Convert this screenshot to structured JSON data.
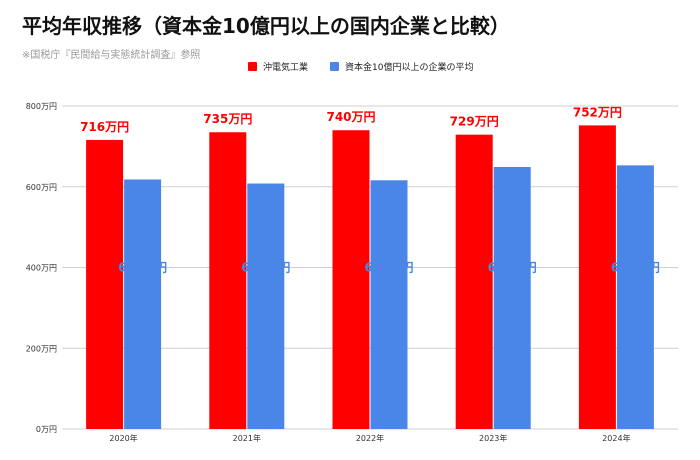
{
  "header": {
    "title": "平均年収推移（資本金10億円以上の国内企業と比較）",
    "source": "※国税庁『民間給与実態統計調査』参照"
  },
  "colors": {
    "series1": "#ff0000",
    "series2": "#4a86e8",
    "grid": "#d0d0d0",
    "label1": "#ff0000",
    "label2": "#4a86e8"
  },
  "chart_data": {
    "type": "bar",
    "categories": [
      "2020年",
      "2021年",
      "2022年",
      "2023年",
      "2024年"
    ],
    "series": [
      {
        "name": "沖電気工業",
        "values": [
          716,
          735,
          740,
          729,
          752
        ],
        "labels": [
          "716万円",
          "735万円",
          "740万円",
          "729万円",
          "752万円"
        ]
      },
      {
        "name": "資本金10億円以上の企業の平均",
        "values": [
          618,
          608,
          616,
          649,
          653
        ],
        "labels": [
          "618万円",
          "608万円",
          "616万円",
          "649万円",
          "653万円"
        ]
      }
    ],
    "y_ticks": [
      0,
      200,
      400,
      600,
      800
    ],
    "y_tick_labels": [
      "0万円",
      "200万円",
      "400万円",
      "600万円",
      "800万円"
    ],
    "ylim": [
      0,
      800
    ],
    "grid": true,
    "legend_position": "top"
  }
}
